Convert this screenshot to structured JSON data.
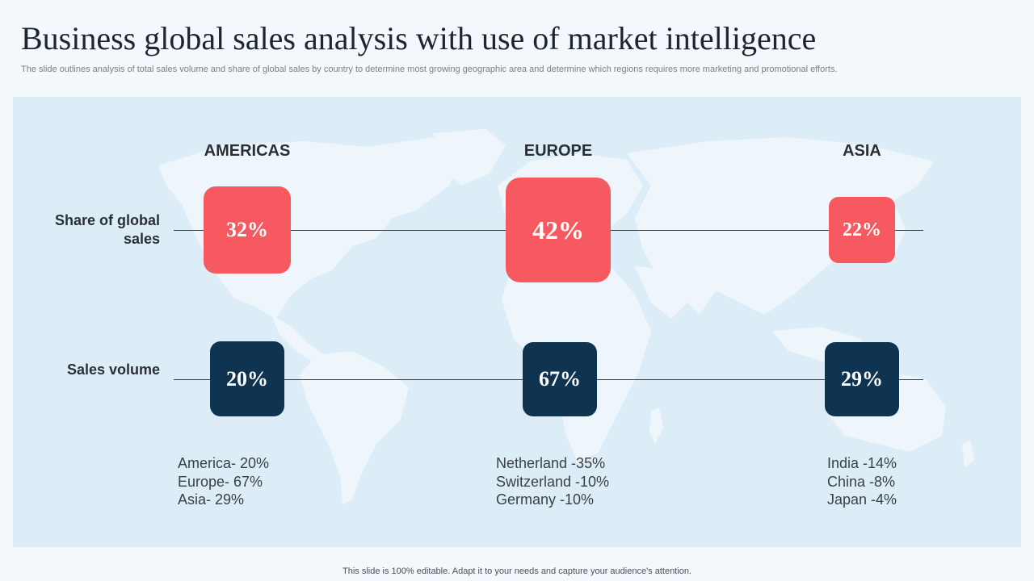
{
  "title": "Business global sales analysis with use of market intelligence",
  "subtitle": "The slide outlines analysis of total sales volume and share of global sales by country to determine most growing geographic area and determine which regions requires more marketing and promotional efforts.",
  "row_labels": {
    "share": "Share of global sales",
    "volume": "Sales volume"
  },
  "regions": [
    {
      "name": "AMERICAS",
      "share": "32%",
      "volume": "20%",
      "details": [
        "America- 20%",
        "Europe- 67%",
        "Asia- 29%"
      ]
    },
    {
      "name": "EUROPE",
      "share": "42%",
      "volume": "67%",
      "details": [
        "Netherland -35%",
        "Switzerland -10%",
        "Germany -10%"
      ]
    },
    {
      "name": "ASIA",
      "share": "22%",
      "volume": "29%",
      "details": [
        "India -14%",
        "China -8%",
        "Japan -4%"
      ]
    }
  ],
  "footer": "This slide is 100% editable. Adapt it to your needs and capture your audience's attention.",
  "colors": {
    "share_box": "#f65a60",
    "volume_box": "#0f3452",
    "panel": "#dcedf8",
    "map": "#eef6fc"
  },
  "icons": [
    "world-map-graphic"
  ]
}
